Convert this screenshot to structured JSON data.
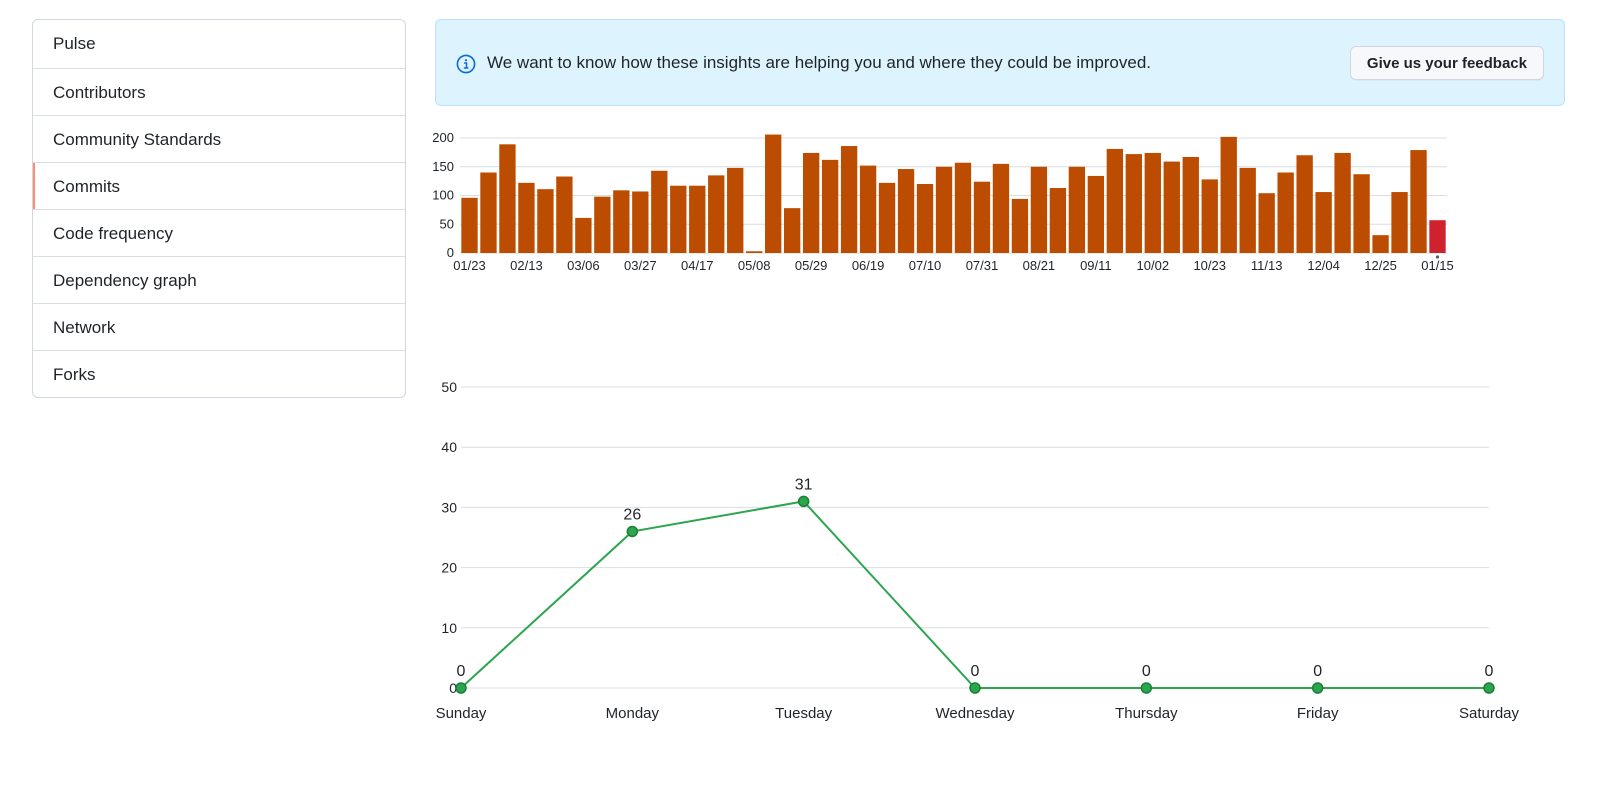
{
  "sidebar": {
    "items": [
      {
        "label": "Pulse"
      },
      {
        "label": "Contributors"
      },
      {
        "label": "Community Standards"
      },
      {
        "label": "Commits",
        "selected": true
      },
      {
        "label": "Code frequency"
      },
      {
        "label": "Dependency graph"
      },
      {
        "label": "Network"
      },
      {
        "label": "Forks"
      }
    ]
  },
  "flash": {
    "icon": "info-icon",
    "message": "We want to know how these insights are helping you and where they could be improved.",
    "button_label": "Give us your feedback"
  },
  "colors": {
    "bar": "#bc4c00",
    "bar_current": "#cf222e",
    "line": "#2da44e",
    "accent_selected": "#fd8c73"
  },
  "chart_data": [
    {
      "type": "bar",
      "title": "",
      "ylim": [
        0,
        200
      ],
      "yticks": [
        0,
        50,
        100,
        150,
        200
      ],
      "xtick_labels": [
        "01/23",
        "02/13",
        "03/06",
        "03/27",
        "04/17",
        "05/08",
        "05/29",
        "06/19",
        "07/10",
        "07/31",
        "08/21",
        "09/11",
        "10/02",
        "10/23",
        "11/13",
        "12/04",
        "12/25",
        "01/15"
      ],
      "xtick_every": 3,
      "values": [
        96,
        140,
        189,
        122,
        111,
        133,
        61,
        98,
        109,
        107,
        143,
        117,
        117,
        135,
        148,
        3,
        206,
        78,
        174,
        162,
        186,
        152,
        122,
        146,
        120,
        150,
        157,
        124,
        155,
        94,
        150,
        113,
        150,
        134,
        181,
        172,
        174,
        159,
        167,
        128,
        202,
        148,
        104,
        140,
        170,
        106,
        174,
        137,
        31,
        106,
        179,
        57
      ],
      "highlight_last": true
    },
    {
      "type": "line",
      "title": "",
      "categories": [
        "Sunday",
        "Monday",
        "Tuesday",
        "Wednesday",
        "Thursday",
        "Friday",
        "Saturday"
      ],
      "values": [
        0,
        26,
        31,
        0,
        0,
        0,
        0
      ],
      "ylim": [
        0,
        50
      ],
      "yticks": [
        0,
        10,
        20,
        30,
        40,
        50
      ],
      "data_labels": true
    }
  ]
}
